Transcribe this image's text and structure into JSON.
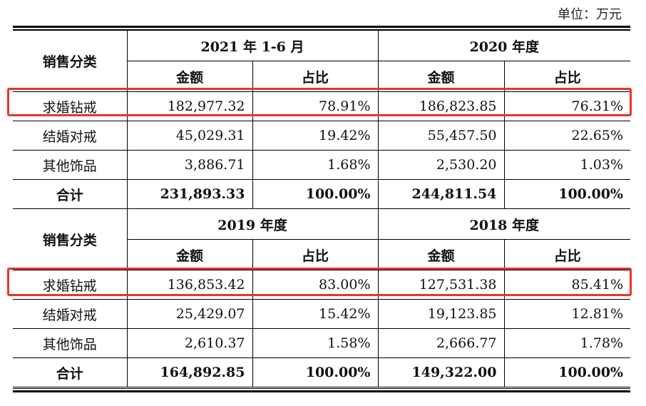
{
  "unit": "单位：万元",
  "colors": {
    "highlight": "#e8362a"
  },
  "sections": [
    {
      "category_header": "销售分类",
      "period_a": "2021 年 1-6 月",
      "period_b": "2020 年度",
      "amount_label": "金额",
      "ratio_label": "占比",
      "rows": [
        {
          "category": "求婚钻戒",
          "a_amount": "182,977.32",
          "a_ratio": "78.91%",
          "b_amount": "186,823.85",
          "b_ratio": "76.31%"
        },
        {
          "category": "结婚对戒",
          "a_amount": "45,029.31",
          "a_ratio": "19.42%",
          "b_amount": "55,457.50",
          "b_ratio": "22.65%"
        },
        {
          "category": "其他饰品",
          "a_amount": "3,886.71",
          "a_ratio": "1.68%",
          "b_amount": "2,530.20",
          "b_ratio": "1.03%"
        }
      ],
      "total": {
        "category": "合计",
        "a_amount": "231,893.33",
        "a_ratio": "100.00%",
        "b_amount": "244,811.54",
        "b_ratio": "100.00%"
      }
    },
    {
      "category_header": "销售分类",
      "period_a": "2019 年度",
      "period_b": "2018 年度",
      "amount_label": "金额",
      "ratio_label": "占比",
      "rows": [
        {
          "category": "求婚钻戒",
          "a_amount": "136,853.42",
          "a_ratio": "83.00%",
          "b_amount": "127,531.38",
          "b_ratio": "85.41%"
        },
        {
          "category": "结婚对戒",
          "a_amount": "25,429.07",
          "a_ratio": "15.42%",
          "b_amount": "19,123.85",
          "b_ratio": "12.81%"
        },
        {
          "category": "其他饰品",
          "a_amount": "2,610.37",
          "a_ratio": "1.58%",
          "b_amount": "2,666.77",
          "b_ratio": "1.78%"
        }
      ],
      "total": {
        "category": "合计",
        "a_amount": "164,892.85",
        "a_ratio": "100.00%",
        "b_amount": "149,322.00",
        "b_ratio": "100.00%"
      }
    }
  ]
}
